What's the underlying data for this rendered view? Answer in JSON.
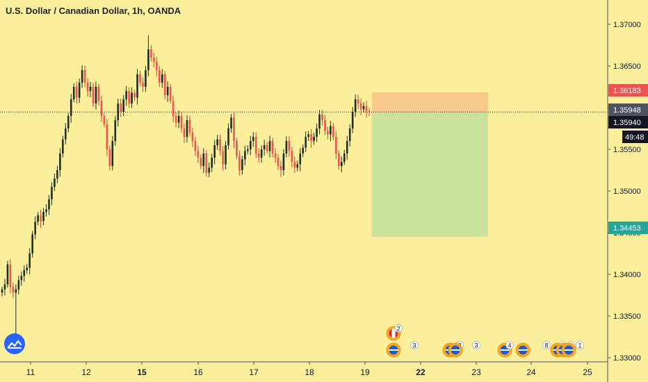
{
  "header": {
    "title": "U.S. Dollar / Canadian Dollar, 1h, OANDA"
  },
  "colors": {
    "background": "#fbef9c",
    "up_candle": "#26a69a",
    "down_candle": "#ef5350",
    "wick_up": "#1e3a2f",
    "stop_zone": "#f9c98a",
    "profit_zone": "#c9e29c",
    "price_label_bg": "#4c525e",
    "stop_label_bg": "#ef5350",
    "target_label_bg": "#26a69a",
    "countdown_bg": "#131722"
  },
  "chart_data": {
    "type": "candlestick",
    "symbol": "U.S. Dollar / Canadian Dollar",
    "interval": "1h",
    "source": "OANDA",
    "x_ticks": [
      "11",
      "12",
      "15",
      "16",
      "17",
      "18",
      "19",
      "22",
      "23",
      "24",
      "25"
    ],
    "x_ticks_bold": [
      "15",
      "22"
    ],
    "y_ticks": [
      "1.37000",
      "1.36500",
      "1.36000",
      "1.35500",
      "1.35000",
      "1.34500",
      "1.34000",
      "1.33500",
      "1.33000"
    ],
    "ylim": [
      1.3284,
      1.3734
    ],
    "price_labels": {
      "stop": "1.36183",
      "current": "1.35948",
      "entry": "1.35940",
      "countdown": "49:48",
      "target": "1.34453"
    },
    "position": {
      "side": "short",
      "entry": 1.3594,
      "stop": 1.36183,
      "target": 1.34453,
      "start_date": "19",
      "end_date": "22"
    },
    "events": [
      {
        "day": "19",
        "flag": "CA",
        "count": "2"
      },
      {
        "day": "19",
        "flag": "US",
        "count": "3"
      },
      {
        "day": "22",
        "flag": "US",
        "count": "2"
      },
      {
        "day": "22",
        "flag": "US",
        "count": "3"
      },
      {
        "day": "23",
        "flag": "US",
        "count": "4"
      },
      {
        "day": "24",
        "flag": "US",
        "count": "8"
      },
      {
        "day": "24",
        "flag": "US",
        "count": "5"
      },
      {
        "day": "24",
        "flag": "US",
        "count": "3"
      },
      {
        "day": "24",
        "flag": "US",
        "count": "1"
      }
    ],
    "close_path": [
      1.3382,
      1.3388,
      1.3412,
      1.3385,
      1.3378,
      1.3382,
      1.3393,
      1.3398,
      1.3405,
      1.3408,
      1.3425,
      1.3448,
      1.3463,
      1.3471,
      1.3464,
      1.3475,
      1.3478,
      1.349,
      1.3505,
      1.3515,
      1.3525,
      1.3545,
      1.3562,
      1.3575,
      1.359,
      1.361,
      1.3625,
      1.3612,
      1.363,
      1.3645,
      1.363,
      1.362,
      1.3625,
      1.3605,
      1.3625,
      1.3608,
      1.359,
      1.358,
      1.355,
      1.353,
      1.356,
      1.3585,
      1.3605,
      1.3595,
      1.361,
      1.362,
      1.3605,
      1.3618,
      1.3612,
      1.364,
      1.363,
      1.3625,
      1.3645,
      1.367,
      1.366,
      1.3655,
      1.3645,
      1.363,
      1.364,
      1.3615,
      1.3625,
      1.3608,
      1.359,
      1.3582,
      1.359,
      1.3575,
      1.3565,
      1.3585,
      1.357,
      1.356,
      1.3548,
      1.354,
      1.353,
      1.3545,
      1.3522,
      1.3528,
      1.354,
      1.3555,
      1.3562,
      1.3548,
      1.3532,
      1.3555,
      1.3575,
      1.3588,
      1.356,
      1.3542,
      1.3525,
      1.3538,
      1.3548,
      1.355,
      1.356,
      1.3565,
      1.3545,
      1.354,
      1.355,
      1.3555,
      1.3548,
      1.356,
      1.3545,
      1.354,
      1.353,
      1.3525,
      1.3545,
      1.356,
      1.3548,
      1.3535,
      1.3528,
      1.3532,
      1.3545,
      1.3552,
      1.3565,
      1.3568,
      1.356,
      1.3565,
      1.3575,
      1.3592,
      1.3585,
      1.3572,
      1.3568,
      1.3578,
      1.3565,
      1.3545,
      1.353,
      1.3535,
      1.3545,
      1.356,
      1.3575,
      1.3595,
      1.361,
      1.3605,
      1.3598,
      1.3602,
      1.3596,
      1.3595
    ]
  }
}
